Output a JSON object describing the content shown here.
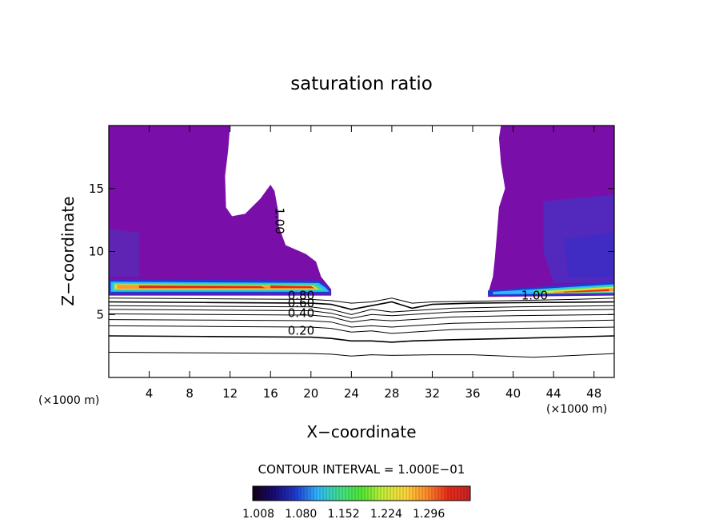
{
  "chart_data": {
    "type": "heatmap",
    "title": "saturation ratio",
    "xlabel": "X−coordinate",
    "ylabel": "Z−coordinate",
    "x_unit_left": "(×1000 m)",
    "x_unit_right": "(×1000 m)",
    "xlim": [
      0,
      50
    ],
    "ylim": [
      0,
      20
    ],
    "xticks": [
      4,
      8,
      12,
      16,
      20,
      24,
      28,
      32,
      36,
      40,
      44,
      48
    ],
    "yticks": [
      5,
      10,
      15
    ],
    "contour_interval_text": "CONTOUR INTERVAL = 1.000E−01",
    "colorbar": {
      "range": [
        1.008,
        1.34
      ],
      "tick_labels": [
        "1.008",
        "1.080",
        "1.152",
        "1.224",
        "1.296"
      ],
      "colors": [
        "#140014",
        "#1a0a78",
        "#1f3cd2",
        "#2fb8ff",
        "#3fe08a",
        "#50e830",
        "#c8ee3a",
        "#ffd83a",
        "#ff8a2a",
        "#e82a1a",
        "#c82424"
      ]
    },
    "fill_colors": {
      "supersaturated": "#7a0ea8",
      "deeper": "#5a14b4",
      "band_red": "#e8281c",
      "band_orange": "#ff9a2a",
      "band_yellow": "#e8e03a",
      "band_green": "#3fe08a",
      "band_cyan": "#2fb8ff",
      "band_blue": "#1f3cd2"
    },
    "contour_labels": [
      {
        "text": "1.00",
        "x": 16.5,
        "z": 13.5,
        "rotate": 90
      },
      {
        "text": "1.00",
        "x": 40.8,
        "z": 6.2,
        "rotate": 0
      },
      {
        "text": "0.80",
        "x": 17.7,
        "z": 6.2,
        "rotate": 0
      },
      {
        "text": "0.60",
        "x": 17.7,
        "z": 5.6,
        "rotate": 0
      },
      {
        "text": "0.40",
        "x": 17.7,
        "z": 4.8,
        "rotate": 0
      },
      {
        "text": "0.20",
        "x": 17.7,
        "z": 3.4,
        "rotate": 0
      }
    ],
    "contours": [
      {
        "value": 0.9,
        "points": [
          [
            0,
            6.3
          ],
          [
            10,
            6.25
          ],
          [
            20,
            6.2
          ],
          [
            22,
            6.1
          ],
          [
            24,
            5.9
          ],
          [
            26,
            6.0
          ],
          [
            28,
            6.3
          ],
          [
            30,
            5.9
          ],
          [
            32,
            6.0
          ],
          [
            36,
            6.05
          ],
          [
            40,
            6.1
          ],
          [
            46,
            6.2
          ],
          [
            50,
            6.3
          ]
        ]
      },
      {
        "value": 0.8,
        "points": [
          [
            0,
            6.0
          ],
          [
            10,
            5.95
          ],
          [
            20,
            5.9
          ],
          [
            22,
            5.8
          ],
          [
            24,
            5.4
          ],
          [
            26,
            5.7
          ],
          [
            28,
            6.0
          ],
          [
            30,
            5.5
          ],
          [
            32,
            5.8
          ],
          [
            36,
            5.9
          ],
          [
            42,
            5.95
          ],
          [
            50,
            6.0
          ]
        ]
      },
      {
        "value": 0.7,
        "points": [
          [
            0,
            5.7
          ],
          [
            10,
            5.65
          ],
          [
            20,
            5.6
          ],
          [
            22,
            5.4
          ],
          [
            24,
            5.0
          ],
          [
            26,
            5.4
          ],
          [
            28,
            5.2
          ],
          [
            30,
            5.3
          ],
          [
            34,
            5.5
          ],
          [
            40,
            5.6
          ],
          [
            50,
            5.7
          ]
        ]
      },
      {
        "value": 0.6,
        "points": [
          [
            0,
            5.4
          ],
          [
            10,
            5.35
          ],
          [
            20,
            5.3
          ],
          [
            22,
            5.1
          ],
          [
            24,
            4.7
          ],
          [
            26,
            5.0
          ],
          [
            28,
            4.9
          ],
          [
            30,
            5.0
          ],
          [
            34,
            5.2
          ],
          [
            40,
            5.3
          ],
          [
            50,
            5.4
          ]
        ]
      },
      {
        "value": 0.5,
        "points": [
          [
            0,
            5.05
          ],
          [
            10,
            5.0
          ],
          [
            20,
            4.95
          ],
          [
            22,
            4.8
          ],
          [
            24,
            4.4
          ],
          [
            26,
            4.6
          ],
          [
            28,
            4.5
          ],
          [
            30,
            4.6
          ],
          [
            34,
            4.8
          ],
          [
            40,
            4.9
          ],
          [
            50,
            5.0
          ]
        ]
      },
      {
        "value": 0.4,
        "points": [
          [
            0,
            4.6
          ],
          [
            10,
            4.55
          ],
          [
            20,
            4.5
          ],
          [
            22,
            4.4
          ],
          [
            24,
            4.0
          ],
          [
            26,
            4.1
          ],
          [
            28,
            4.0
          ],
          [
            30,
            4.1
          ],
          [
            34,
            4.3
          ],
          [
            40,
            4.4
          ],
          [
            50,
            4.55
          ]
        ]
      },
      {
        "value": 0.3,
        "points": [
          [
            0,
            4.1
          ],
          [
            10,
            4.05
          ],
          [
            20,
            4.0
          ],
          [
            22,
            3.9
          ],
          [
            24,
            3.6
          ],
          [
            26,
            3.7
          ],
          [
            28,
            3.5
          ],
          [
            30,
            3.6
          ],
          [
            34,
            3.8
          ],
          [
            40,
            3.9
          ],
          [
            50,
            4.0
          ]
        ]
      },
      {
        "value": 0.2,
        "points": [
          [
            0,
            3.3
          ],
          [
            10,
            3.25
          ],
          [
            20,
            3.2
          ],
          [
            22,
            3.1
          ],
          [
            24,
            2.9
          ],
          [
            26,
            2.9
          ],
          [
            28,
            2.8
          ],
          [
            30,
            2.9
          ],
          [
            34,
            3.0
          ],
          [
            40,
            3.1
          ],
          [
            50,
            3.3
          ]
        ]
      },
      {
        "value": 0.1,
        "points": [
          [
            0,
            2.0
          ],
          [
            10,
            1.95
          ],
          [
            20,
            1.9
          ],
          [
            22,
            1.85
          ],
          [
            24,
            1.7
          ],
          [
            26,
            1.8
          ],
          [
            28,
            1.75
          ],
          [
            32,
            1.8
          ],
          [
            36,
            1.8
          ],
          [
            42,
            1.6
          ],
          [
            50,
            1.9
          ]
        ]
      }
    ],
    "regions": [
      {
        "name": "left-supersaturated-region",
        "fill": "#7a0ea8",
        "points": [
          [
            0,
            20
          ],
          [
            12,
            20
          ],
          [
            11.8,
            18
          ],
          [
            11.5,
            16
          ],
          [
            11.6,
            13.5
          ],
          [
            12.2,
            12.8
          ],
          [
            13.5,
            13.0
          ],
          [
            15,
            14.2
          ],
          [
            16,
            15.3
          ],
          [
            16.4,
            14.8
          ],
          [
            16.8,
            13.0
          ],
          [
            16.8,
            12.0
          ],
          [
            17.5,
            10.5
          ],
          [
            19.5,
            9.8
          ],
          [
            20.5,
            9.2
          ],
          [
            21,
            8.0
          ],
          [
            22,
            7.0
          ],
          [
            22,
            6.5
          ],
          [
            0,
            6.5
          ]
        ]
      },
      {
        "name": "right-supersaturated-region",
        "fill": "#7a0ea8",
        "points": [
          [
            38.8,
            20
          ],
          [
            50,
            20
          ],
          [
            50,
            6.5
          ],
          [
            37.5,
            6.4
          ],
          [
            37.6,
            6.9
          ],
          [
            38,
            8.0
          ],
          [
            38.2,
            9.5
          ],
          [
            38.4,
            11.5
          ],
          [
            38.6,
            13.5
          ],
          [
            39.2,
            15.0
          ],
          [
            38.8,
            17.0
          ],
          [
            38.6,
            19.0
          ]
        ]
      }
    ],
    "deep_regions": [
      {
        "fill": "#5a2ab8",
        "points": [
          [
            0,
            11.8
          ],
          [
            3,
            11.5
          ],
          [
            3,
            8.0
          ],
          [
            0,
            8.0
          ]
        ]
      },
      {
        "fill": "#4a30c0",
        "points": [
          [
            43,
            14.0
          ],
          [
            50,
            14.5
          ],
          [
            50,
            7.5
          ],
          [
            44,
            7.5
          ],
          [
            43,
            10.0
          ]
        ]
      },
      {
        "fill": "#3c2cc4",
        "points": [
          [
            45,
            11.0
          ],
          [
            50,
            11.5
          ],
          [
            50,
            8.0
          ],
          [
            45.5,
            8.0
          ]
        ]
      }
    ],
    "bands": [
      {
        "fill": "#1f3cd2",
        "points": [
          [
            0,
            7.8
          ],
          [
            20.8,
            7.7
          ],
          [
            21.5,
            7.3
          ],
          [
            22,
            6.8
          ],
          [
            22,
            6.6
          ],
          [
            0,
            6.6
          ]
        ]
      },
      {
        "fill": "#2fb8ff",
        "points": [
          [
            0.2,
            7.6
          ],
          [
            20.8,
            7.5
          ],
          [
            21.5,
            7.1
          ],
          [
            21.8,
            6.8
          ],
          [
            0.2,
            6.8
          ]
        ]
      },
      {
        "fill": "#3fe08a",
        "points": [
          [
            0.4,
            7.5
          ],
          [
            20.5,
            7.4
          ],
          [
            21.2,
            7.0
          ],
          [
            21.5,
            6.9
          ],
          [
            0.4,
            6.9
          ]
        ]
      },
      {
        "fill": "#e8e03a",
        "points": [
          [
            0.6,
            7.4
          ],
          [
            20.2,
            7.3
          ],
          [
            20.8,
            7.0
          ],
          [
            0.6,
            7.0
          ]
        ]
      },
      {
        "fill": "#ff9a2a",
        "points": [
          [
            0.8,
            7.35
          ],
          [
            20,
            7.25
          ],
          [
            20.5,
            7.05
          ],
          [
            0.8,
            7.05
          ]
        ]
      },
      {
        "fill": "#e8281c",
        "points": [
          [
            3,
            7.3
          ],
          [
            15,
            7.25
          ],
          [
            15.5,
            7.1
          ],
          [
            3,
            7.1
          ]
        ]
      },
      {
        "fill": "#e8281c",
        "points": [
          [
            16,
            7.3
          ],
          [
            20,
            7.25
          ],
          [
            20.3,
            7.1
          ],
          [
            16,
            7.1
          ]
        ]
      },
      {
        "fill": "#1f3cd2",
        "points": [
          [
            37.5,
            6.9
          ],
          [
            50,
            7.6
          ],
          [
            50,
            6.6
          ],
          [
            37.5,
            6.5
          ]
        ]
      },
      {
        "fill": "#2fb8ff",
        "points": [
          [
            38,
            6.8
          ],
          [
            50,
            7.4
          ],
          [
            50,
            6.7
          ],
          [
            38,
            6.6
          ]
        ]
      },
      {
        "fill": "#3fe08a",
        "points": [
          [
            42,
            6.9
          ],
          [
            50,
            7.3
          ],
          [
            50,
            6.75
          ],
          [
            42,
            6.65
          ]
        ]
      },
      {
        "fill": "#e8e03a",
        "points": [
          [
            43,
            6.85
          ],
          [
            50,
            7.2
          ],
          [
            50,
            6.8
          ],
          [
            43,
            6.7
          ]
        ]
      },
      {
        "fill": "#ff9a2a",
        "points": [
          [
            44,
            6.8
          ],
          [
            50,
            7.1
          ],
          [
            50,
            6.85
          ],
          [
            44,
            6.72
          ]
        ]
      },
      {
        "fill": "#e8281c",
        "points": [
          [
            45,
            6.8
          ],
          [
            49.5,
            7.0
          ],
          [
            49.5,
            6.85
          ],
          [
            45,
            6.75
          ]
        ]
      }
    ]
  }
}
